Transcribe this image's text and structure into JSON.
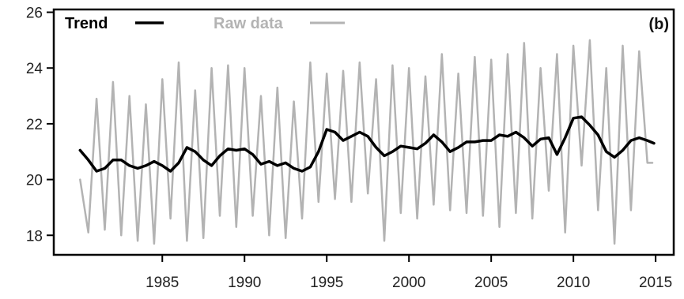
{
  "chart_data": {
    "type": "line",
    "panel_label": "(b)",
    "title": "",
    "xlabel": "",
    "ylabel": "",
    "xlim": [
      1978.4,
      2016.1
    ],
    "ylim": [
      17.3,
      26.1
    ],
    "x_ticks": [
      1985,
      1990,
      1995,
      2000,
      2005,
      2010,
      2015
    ],
    "y_ticks": [
      18,
      20,
      22,
      24,
      26
    ],
    "grid": false,
    "legend_position": "top-left",
    "colors": {
      "trend": "#000000",
      "raw": "#b3b3b3",
      "axes": "#000000"
    },
    "series": [
      {
        "name": "Trend",
        "key": "trend",
        "x": [
          1980.0,
          1980.5,
          1981.0,
          1981.5,
          1982.0,
          1982.5,
          1983.0,
          1983.5,
          1984.0,
          1984.5,
          1985.0,
          1985.5,
          1986.0,
          1986.5,
          1987.0,
          1987.5,
          1988.0,
          1988.5,
          1989.0,
          1989.5,
          1990.0,
          1990.5,
          1991.0,
          1991.5,
          1992.0,
          1992.5,
          1993.0,
          1993.5,
          1994.0,
          1994.5,
          1995.0,
          1995.5,
          1996.0,
          1996.5,
          1997.0,
          1997.5,
          1998.0,
          1998.5,
          1999.0,
          1999.5,
          2000.0,
          2000.5,
          2001.0,
          2001.5,
          2002.0,
          2002.5,
          2003.0,
          2003.5,
          2004.0,
          2004.5,
          2005.0,
          2005.5,
          2006.0,
          2006.5,
          2007.0,
          2007.5,
          2008.0,
          2008.5,
          2009.0,
          2009.5,
          2010.0,
          2010.5,
          2011.0,
          2011.5,
          2012.0,
          2012.5,
          2013.0,
          2013.5,
          2014.0,
          2014.5,
          2014.9
        ],
        "values": [
          21.05,
          20.7,
          20.3,
          20.4,
          20.7,
          20.7,
          20.5,
          20.4,
          20.5,
          20.65,
          20.5,
          20.3,
          20.6,
          21.15,
          21.0,
          20.7,
          20.5,
          20.85,
          21.1,
          21.05,
          21.1,
          20.9,
          20.55,
          20.65,
          20.5,
          20.6,
          20.4,
          20.3,
          20.45,
          21.0,
          21.8,
          21.7,
          21.4,
          21.55,
          21.7,
          21.55,
          21.15,
          20.85,
          21.0,
          21.2,
          21.15,
          21.1,
          21.3,
          21.6,
          21.35,
          21.0,
          21.15,
          21.35,
          21.35,
          21.4,
          21.4,
          21.6,
          21.55,
          21.7,
          21.5,
          21.2,
          21.45,
          21.5,
          20.9,
          21.5,
          22.2,
          22.25,
          21.95,
          21.6,
          21.0,
          20.8,
          21.05,
          21.4,
          21.5,
          21.4,
          21.3
        ]
      },
      {
        "name": "Raw data",
        "key": "raw",
        "x": [
          1980.0,
          1980.5,
          1981.0,
          1981.5,
          1982.0,
          1982.5,
          1983.0,
          1983.5,
          1984.0,
          1984.5,
          1985.0,
          1985.5,
          1986.0,
          1986.5,
          1987.0,
          1987.5,
          1988.0,
          1988.5,
          1989.0,
          1989.5,
          1990.0,
          1990.5,
          1991.0,
          1991.5,
          1992.0,
          1992.5,
          1993.0,
          1993.5,
          1994.0,
          1994.5,
          1995.0,
          1995.5,
          1996.0,
          1996.5,
          1997.0,
          1997.5,
          1998.0,
          1998.5,
          1999.0,
          1999.5,
          2000.0,
          2000.5,
          2001.0,
          2001.5,
          2002.0,
          2002.5,
          2003.0,
          2003.5,
          2004.0,
          2004.5,
          2005.0,
          2005.5,
          2006.0,
          2006.5,
          2007.0,
          2007.5,
          2008.0,
          2008.5,
          2009.0,
          2009.5,
          2010.0,
          2010.5,
          2011.0,
          2011.5,
          2012.0,
          2012.5,
          2013.0,
          2013.5,
          2014.0,
          2014.5,
          2014.8
        ],
        "values": [
          20.0,
          18.1,
          22.9,
          18.2,
          23.5,
          18.0,
          23.0,
          17.8,
          22.7,
          17.7,
          23.6,
          18.6,
          24.2,
          17.8,
          23.2,
          17.9,
          24.0,
          18.7,
          24.1,
          18.3,
          24.0,
          18.7,
          23.0,
          18.0,
          23.3,
          17.9,
          22.8,
          18.6,
          24.2,
          19.2,
          23.8,
          19.3,
          23.9,
          19.2,
          24.2,
          19.5,
          23.6,
          17.8,
          24.1,
          18.8,
          24.0,
          18.6,
          23.7,
          19.1,
          24.5,
          18.9,
          23.8,
          18.8,
          24.4,
          18.7,
          24.3,
          18.3,
          24.5,
          18.8,
          24.9,
          18.6,
          24.0,
          19.6,
          24.5,
          18.1,
          24.8,
          20.5,
          25.0,
          18.9,
          24.0,
          17.7,
          24.8,
          18.9,
          24.6,
          20.6,
          20.6
        ]
      }
    ]
  }
}
